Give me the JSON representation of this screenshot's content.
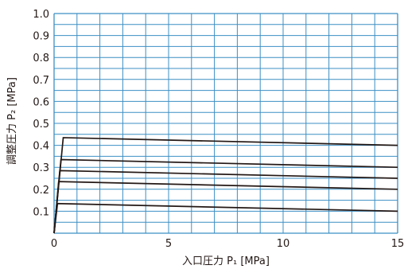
{
  "chart_data": {
    "type": "line",
    "title": "",
    "xlabel": "入口圧力 P₁ [MPa]",
    "ylabel": "調整圧力 P₂ [MPa]",
    "xlim": [
      0,
      15
    ],
    "ylim": [
      0,
      1.0
    ],
    "x_ticks": [
      "0",
      "5",
      "10",
      "15"
    ],
    "y_ticks": [
      "0.1",
      "0.2",
      "0.3",
      "0.4",
      "0.5",
      "0.6",
      "0.7",
      "0.8",
      "0.9",
      "1.0"
    ],
    "grid": true,
    "series": [
      {
        "x": [
          0,
          0.4,
          15
        ],
        "y": [
          0,
          0.435,
          0.4
        ]
      },
      {
        "x": [
          0,
          0.3,
          15
        ],
        "y": [
          0,
          0.335,
          0.3
        ]
      },
      {
        "x": [
          0,
          0.25,
          15
        ],
        "y": [
          0,
          0.285,
          0.25
        ]
      },
      {
        "x": [
          0,
          0.2,
          15
        ],
        "y": [
          0,
          0.235,
          0.2
        ]
      },
      {
        "x": [
          0,
          0.15,
          15
        ],
        "y": [
          0,
          0.135,
          0.1
        ]
      }
    ],
    "colors": {
      "grid": "#3c8fc4",
      "line": "#231815",
      "text": "#231815"
    }
  }
}
